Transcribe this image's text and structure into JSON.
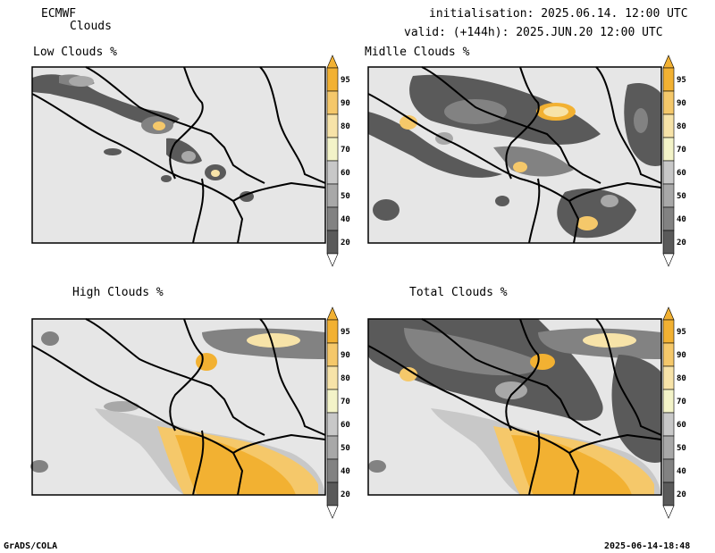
{
  "header": {
    "model": "ECMWF",
    "product": "Clouds",
    "init": "initialisation: 2025.06.14. 12:00 UTC",
    "valid": "valid: (+144h): 2025.JUN.20 12:00 UTC"
  },
  "panels": [
    {
      "title": "Low Clouds %"
    },
    {
      "title": "Midlle Clouds %"
    },
    {
      "title": "High Clouds %"
    },
    {
      "title": "Total Clouds %"
    }
  ],
  "colorbar": {
    "labels": [
      "95",
      "90",
      "80",
      "70",
      "60",
      "50",
      "40",
      "20"
    ],
    "colors": {
      "95": "#f2b132",
      "90": "#f5c86a",
      "80": "#f7e3a8",
      "70": "#f3f3c8",
      "60": "#c8c8c8",
      "50": "#a8a8a8",
      "40": "#828282",
      "20": "#5a5a5a",
      "below": "#e6e6e6"
    }
  },
  "footer": {
    "left": "GrADS/COLA",
    "right": "2025-06-14-18:48"
  }
}
